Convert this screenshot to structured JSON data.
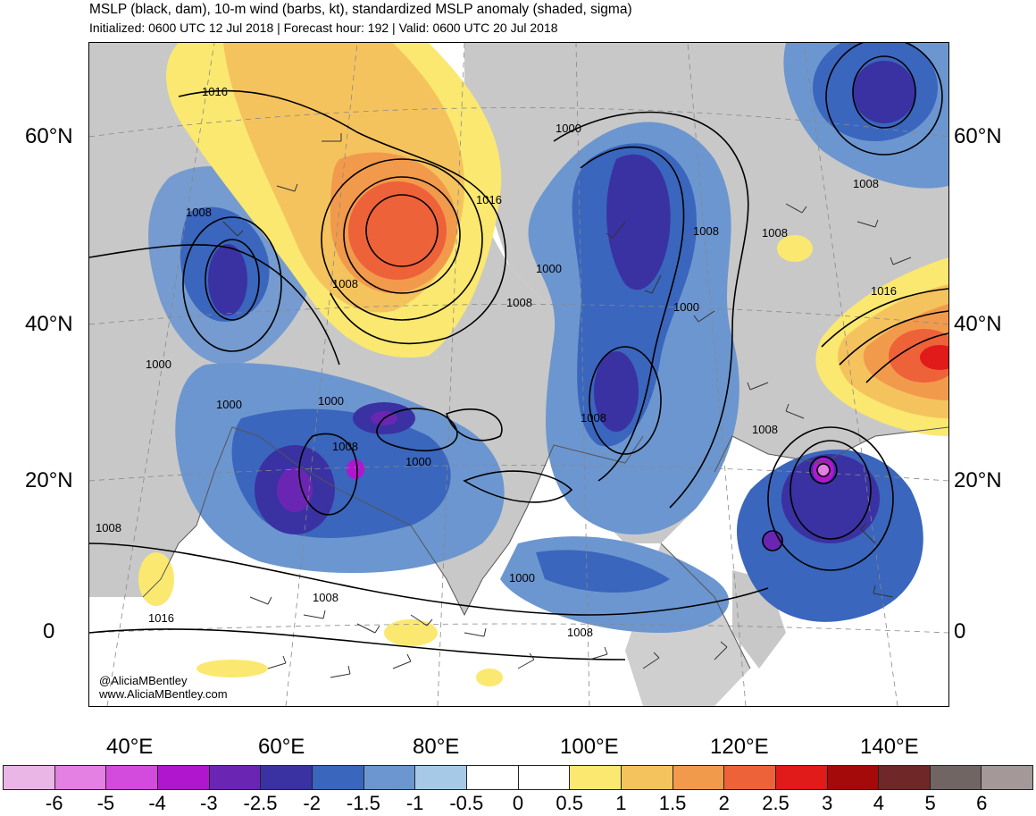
{
  "header": {
    "title": "MSLP (black, dam), 10-m wind (barbs, kt), standardized MSLP anomaly (shaded, sigma)",
    "subtitle": "Initialized: 0600 UTC 12 Jul 2018 | Forecast hour: 192 | Valid: 0600 UTC 20 Jul 2018"
  },
  "map": {
    "lat_labels": [
      "60°N",
      "40°N",
      "20°N",
      "0"
    ],
    "lon_labels": [
      "40°E",
      "60°E",
      "80°E",
      "100°E",
      "120°E",
      "140°E"
    ],
    "isobar_labels": [
      "1016",
      "1008",
      "1000",
      "1008",
      "1016",
      "1000",
      "1008",
      "1008",
      "1000",
      "1008",
      "1000",
      "1000",
      "1000",
      "1008",
      "1000",
      "1008",
      "1008",
      "1008",
      "1016",
      "1016",
      "1008",
      "1008",
      "1000",
      "1008"
    ],
    "credit": {
      "handle": "@AliciaMBentley",
      "website": "www.AliciaMBentley.com"
    }
  },
  "colorbar": {
    "colors": [
      "#e9b6e6",
      "#e47fe3",
      "#d34bdc",
      "#b116cf",
      "#6a26b2",
      "#3a32a2",
      "#3a66bd",
      "#6c96d0",
      "#a6c9e7",
      "#ffffff",
      "#ffffff",
      "#fbe870",
      "#f5c35e",
      "#f29a4c",
      "#ee6239",
      "#e11a1a",
      "#a50a0a",
      "#6f2727",
      "#716564",
      "#a49898"
    ],
    "labels": [
      "-6",
      "-5",
      "-4",
      "-3",
      "-2.5",
      "-2",
      "-1.5",
      "-1",
      "-0.5",
      "0",
      "0.5",
      "1",
      "1.5",
      "2",
      "2.5",
      "3",
      "4",
      "5",
      "6"
    ]
  }
}
